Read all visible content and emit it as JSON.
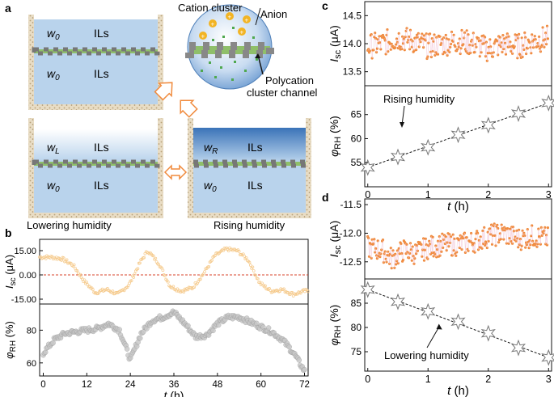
{
  "panels": {
    "a": {
      "letter": "a",
      "w0": "w",
      "w0_sub": "0",
      "wL_sub": "L",
      "wR_sub": "R",
      "ils": "ILs",
      "cation_label": "Cation cluster",
      "anion_label": "Anion",
      "channel_label_1": "Polycation",
      "channel_label_2": "cluster channel",
      "lowering_label": "Lowering humidity",
      "rising_label": "Rising humidity"
    },
    "b": {
      "letter": "b"
    },
    "c": {
      "letter": "c",
      "annotation": "Rising humidity"
    },
    "d": {
      "letter": "d",
      "annotation": "Lowering humidity"
    }
  },
  "colors": {
    "orange": "#f08a3c",
    "lightorange": "#f5c98a",
    "gray": "#9a9a9a",
    "liquid": "#b9d3ec",
    "liquid_dark": "#4f86c6",
    "membrane": "#8fbf6a",
    "ref_line": "#d9442b"
  },
  "chart_data": [
    {
      "id": "b-top",
      "type": "scatter",
      "title": "",
      "xlabel": "",
      "ylabel_main": "I",
      "ylabel_sub": "sc",
      "ylabel_unit": " (μA)",
      "xlim": [
        0,
        72
      ],
      "ylim": [
        -18,
        22
      ],
      "yticks": [
        15,
        0,
        -15
      ],
      "ytick_labels": [
        "15.00",
        "0.00",
        "-15.00"
      ],
      "reference_y": 0,
      "series": [
        {
          "name": "Isc",
          "x": [
            0,
            3,
            6,
            9,
            12,
            15,
            18,
            21,
            24,
            27,
            29,
            32,
            35,
            38,
            41,
            44,
            47,
            50,
            53,
            56,
            59,
            62,
            65,
            68,
            71
          ],
          "values": [
            11,
            11,
            10,
            6,
            -4,
            -11,
            -9,
            -12,
            -6,
            8,
            15,
            7,
            -7,
            -10,
            -8,
            1,
            12,
            16,
            15,
            9,
            -5,
            -10,
            -9,
            -12,
            -10
          ]
        }
      ]
    },
    {
      "id": "b-bottom",
      "type": "scatter",
      "xlabel_main": "t",
      "xlabel_unit": " (h)",
      "ylabel_main": "φ",
      "ylabel_sub": "RH",
      "ylabel_unit": " (%)",
      "xlim": [
        -1,
        73
      ],
      "ylim": [
        52,
        96
      ],
      "yticks": [
        60,
        80
      ],
      "xticks": [
        0,
        12,
        24,
        36,
        48,
        60,
        72
      ],
      "series": [
        {
          "name": "RH",
          "x": [
            0,
            3,
            6,
            9,
            12,
            15,
            18,
            21,
            24,
            27,
            30,
            33,
            36,
            39,
            42,
            45,
            48,
            51,
            54,
            57,
            60,
            63,
            66,
            69,
            72
          ],
          "values": [
            66,
            74,
            78,
            79,
            80,
            81,
            84,
            80,
            62,
            78,
            86,
            88,
            91,
            84,
            76,
            77,
            84,
            88,
            88,
            85,
            82,
            79,
            74,
            66,
            55
          ]
        }
      ]
    },
    {
      "id": "c-top",
      "type": "scatter",
      "ylabel_main": "I",
      "ylabel_sub": "sc",
      "ylabel_unit": " (μA)",
      "xlim": [
        -0.05,
        3.05
      ],
      "ylim": [
        13.25,
        14.75
      ],
      "yticks": [
        13.5,
        14.0,
        14.5
      ],
      "ytick_labels": [
        "13.5",
        "14.0",
        "14.5"
      ],
      "series": [
        {
          "name": "Isc",
          "x": [
            0,
            0.25,
            0.5,
            0.75,
            1,
            1.25,
            1.5,
            1.75,
            2,
            2.25,
            2.5,
            2.75,
            3
          ],
          "values": [
            13.95,
            14.0,
            14.1,
            14.05,
            13.95,
            14.0,
            14.05,
            14.0,
            13.9,
            14.0,
            13.95,
            14.05,
            14.1
          ]
        }
      ]
    },
    {
      "id": "c-bottom",
      "type": "line",
      "xlabel_main": "t",
      "xlabel_unit": " (h)",
      "ylabel_main": "φ",
      "ylabel_sub": "RH",
      "ylabel_unit": " (%)",
      "xlim": [
        -0.05,
        3.05
      ],
      "ylim": [
        50,
        71
      ],
      "yticks": [
        55,
        60,
        65
      ],
      "xticks": [
        0,
        1,
        2,
        3
      ],
      "series": [
        {
          "name": "RH",
          "x": [
            0,
            0.5,
            1,
            1.5,
            2,
            2.5,
            3
          ],
          "values": [
            54,
            56.2,
            58.2,
            60.8,
            62.8,
            65.2,
            67.4
          ]
        }
      ]
    },
    {
      "id": "d-top",
      "type": "scatter",
      "ylabel_main": "I",
      "ylabel_sub": "sc",
      "ylabel_unit": " (μA)",
      "xlim": [
        -0.05,
        3.05
      ],
      "ylim": [
        -12.8,
        -11.4
      ],
      "yticks": [
        -11.5,
        -12.0,
        -12.5
      ],
      "ytick_labels": [
        "-11.5",
        "-12.0",
        "-12.5"
      ],
      "series": [
        {
          "name": "Isc",
          "x": [
            0,
            0.25,
            0.4,
            0.6,
            0.8,
            1,
            1.25,
            1.5,
            1.75,
            2,
            2.25,
            2.5,
            2.75,
            3
          ],
          "values": [
            -12.25,
            -12.3,
            -12.45,
            -12.3,
            -12.35,
            -12.25,
            -12.2,
            -12.2,
            -12.15,
            -12.05,
            -12.0,
            -12.1,
            -12.05,
            -12.1
          ]
        }
      ]
    },
    {
      "id": "d-bottom",
      "type": "line",
      "xlabel_main": "t",
      "xlabel_unit": " (h)",
      "ylabel_main": "φ",
      "ylabel_sub": "RH",
      "ylabel_unit": " (%)",
      "xlim": [
        -0.05,
        3.05
      ],
      "ylim": [
        71,
        90
      ],
      "yticks": [
        75,
        80,
        85
      ],
      "xticks": [
        0,
        1,
        2,
        3
      ],
      "series": [
        {
          "name": "RH",
          "x": [
            0,
            0.5,
            1,
            1.5,
            2,
            2.5,
            3
          ],
          "values": [
            87.8,
            85.3,
            83.3,
            81.2,
            78.8,
            75.8,
            73.8
          ]
        }
      ]
    }
  ]
}
